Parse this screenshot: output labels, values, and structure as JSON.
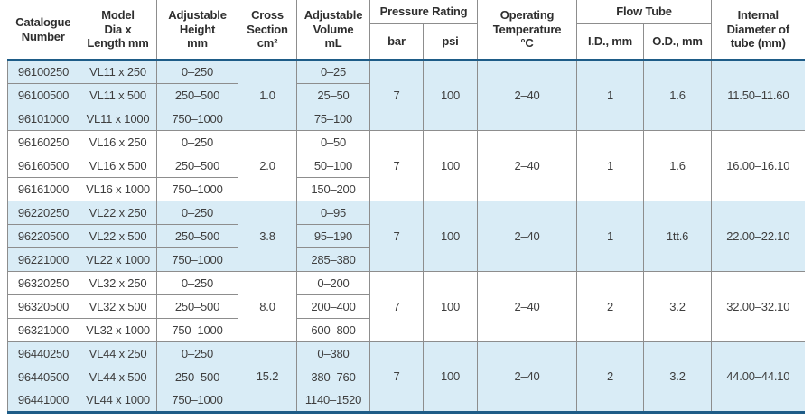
{
  "colors": {
    "row_shade": "#d9ecf6",
    "header_rule": "#1e5c87",
    "grid_line": "#8d8d8d",
    "body_text": "#3e3e3e",
    "header_text": "#2e2e2e"
  },
  "table": {
    "header": {
      "catalogue_number": "Catalogue\nNumber",
      "model": "Model\nDia x\nLength mm",
      "adjustable_height": "Adjustable\nHeight\nmm",
      "cross_section": "Cross\nSection\ncm²",
      "adjustable_volume": "Adjustable\nVolume\nmL",
      "pressure_rating": "Pressure Rating",
      "bar": "bar",
      "psi": "psi",
      "operating_temperature": "Operating\nTemperature\n°C",
      "flow_tube": "Flow Tube",
      "id_mm": "I.D., mm",
      "od_mm": "O.D., mm",
      "internal_diameter": "Internal\nDiameter of\ntube (mm)"
    },
    "groups": [
      {
        "shaded": true,
        "cross_section": "1.0",
        "bar": "7",
        "psi": "100",
        "temp": "2–40",
        "id": "1",
        "od": "1.6",
        "internal": "11.50–11.60",
        "rows": [
          {
            "catalogue": "96100250",
            "model": "VL11 x 250",
            "height": "0–250",
            "volume": "0–25"
          },
          {
            "catalogue": "96100500",
            "model": "VL11 x 500",
            "height": "250–500",
            "volume": "25–50"
          },
          {
            "catalogue": "96101000",
            "model": "VL11 x 1000",
            "height": "750–1000",
            "volume": "75–100"
          }
        ]
      },
      {
        "shaded": false,
        "cross_section": "2.0",
        "bar": "7",
        "psi": "100",
        "temp": "2–40",
        "id": "1",
        "od": "1.6",
        "internal": "16.00–16.10",
        "rows": [
          {
            "catalogue": "96160250",
            "model": "VL16 x 250",
            "height": "0–250",
            "volume": "0–50"
          },
          {
            "catalogue": "96160500",
            "model": "VL16 x 500",
            "height": "250–500",
            "volume": "50–100"
          },
          {
            "catalogue": "96161000",
            "model": "VL16 x 1000",
            "height": "750–1000",
            "volume": "150–200"
          }
        ]
      },
      {
        "shaded": true,
        "cross_section": "3.8",
        "bar": "7",
        "psi": "100",
        "temp": "2–40",
        "id": "1",
        "od": "1tt.6",
        "internal": "22.00–22.10",
        "rows": [
          {
            "catalogue": "96220250",
            "model": "VL22 x 250",
            "height": "0–250",
            "volume": "0–95"
          },
          {
            "catalogue": "96220500",
            "model": "VL22 x 500",
            "height": "250–500",
            "volume": "95–190"
          },
          {
            "catalogue": "96221000",
            "model": "VL22 x 1000",
            "height": "750–1000",
            "volume": "285–380"
          }
        ]
      },
      {
        "shaded": false,
        "cross_section": "8.0",
        "bar": "7",
        "psi": "100",
        "temp": "2–40",
        "id": "2",
        "od": "3.2",
        "internal": "32.00–32.10",
        "rows": [
          {
            "catalogue": "96320250",
            "model": "VL32 x 250",
            "height": "0–250",
            "volume": "0–200"
          },
          {
            "catalogue": "96320500",
            "model": "VL32 x 500",
            "height": "250–500",
            "volume": "200–400"
          },
          {
            "catalogue": "96321000",
            "model": "VL32 x 1000",
            "height": "750–1000",
            "volume": "600–800"
          }
        ]
      },
      {
        "shaded": true,
        "cross_section": "15.2",
        "bar": "7",
        "psi": "100",
        "temp": "2–40",
        "id": "2",
        "od": "3.2",
        "internal": "44.00–44.10",
        "rows": [
          {
            "catalogue": "96440250",
            "model": "VL44 x 250",
            "height": "0–250",
            "volume": "0–380"
          },
          {
            "catalogue": "96440500",
            "model": "VL44 x 500",
            "height": "250–500",
            "volume": "380–760"
          },
          {
            "catalogue": "96441000",
            "model": "VL44 x 1000",
            "height": "750–1000",
            "volume": "1140–1520"
          }
        ]
      }
    ]
  }
}
